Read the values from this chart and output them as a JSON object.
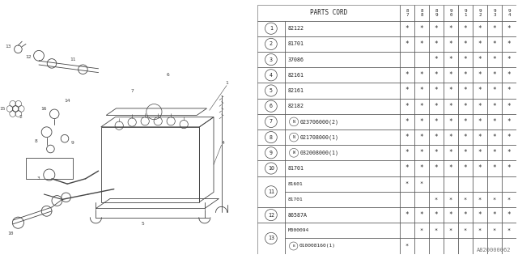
{
  "diagram_code": "A820000062",
  "bg_color": "#ffffff",
  "text_color": "#222222",
  "dk": "#444444",
  "header_cols": [
    "8\n7",
    "8\n8",
    "8\n9",
    "9\n0",
    "9\n1",
    "9\n2",
    "9\n3",
    "9\n4"
  ],
  "rows": [
    {
      "num": "1",
      "part": "82122",
      "prefix": "",
      "stars": [
        1,
        1,
        1,
        1,
        1,
        1,
        1,
        1
      ]
    },
    {
      "num": "2",
      "part": "81701",
      "prefix": "",
      "stars": [
        1,
        1,
        1,
        1,
        1,
        1,
        1,
        1
      ]
    },
    {
      "num": "3",
      "part": "37086",
      "prefix": "",
      "stars": [
        0,
        0,
        1,
        1,
        1,
        1,
        1,
        1
      ]
    },
    {
      "num": "4",
      "part": "82161",
      "prefix": "",
      "stars": [
        1,
        1,
        1,
        1,
        1,
        1,
        1,
        1
      ]
    },
    {
      "num": "5",
      "part": "82161",
      "prefix": "",
      "stars": [
        1,
        1,
        1,
        1,
        1,
        1,
        1,
        1
      ]
    },
    {
      "num": "6",
      "part": "82182",
      "prefix": "",
      "stars": [
        1,
        1,
        1,
        1,
        1,
        1,
        1,
        1
      ]
    },
    {
      "num": "7",
      "part": "023706000(2)",
      "prefix": "N",
      "stars": [
        1,
        1,
        1,
        1,
        1,
        1,
        1,
        1
      ]
    },
    {
      "num": "8",
      "part": "021708000(1)",
      "prefix": "N",
      "stars": [
        1,
        1,
        1,
        1,
        1,
        1,
        1,
        1
      ]
    },
    {
      "num": "9",
      "part": "032008000(1)",
      "prefix": "W",
      "stars": [
        1,
        1,
        1,
        1,
        1,
        1,
        1,
        1
      ]
    },
    {
      "num": "10",
      "part": "81701",
      "prefix": "",
      "stars": [
        1,
        1,
        1,
        1,
        1,
        1,
        1,
        1
      ]
    },
    {
      "num": "11",
      "part": "81601",
      "prefix": "",
      "stars": [
        1,
        1,
        0,
        0,
        0,
        0,
        0,
        0
      ],
      "sub": true
    },
    {
      "num": "11",
      "part": "81701",
      "prefix": "",
      "stars": [
        0,
        0,
        1,
        1,
        1,
        1,
        1,
        1
      ],
      "sub": true,
      "subend": true
    },
    {
      "num": "12",
      "part": "86587A",
      "prefix": "",
      "stars": [
        1,
        1,
        1,
        1,
        1,
        1,
        1,
        1
      ]
    },
    {
      "num": "13",
      "part": "M000094",
      "prefix": "",
      "stars": [
        0,
        1,
        1,
        1,
        1,
        1,
        1,
        1
      ],
      "sub": true
    },
    {
      "num": "13",
      "part": "010008160(1)",
      "prefix": "B",
      "stars": [
        1,
        0,
        0,
        0,
        0,
        0,
        0,
        0
      ],
      "sub": true,
      "subend": true
    }
  ]
}
